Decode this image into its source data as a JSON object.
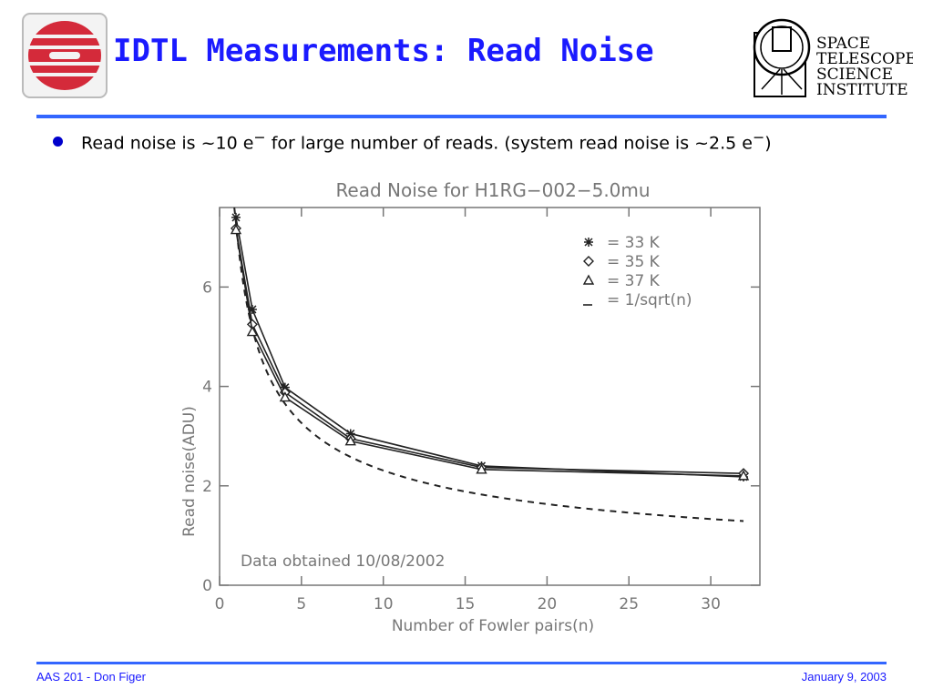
{
  "slide": {
    "title": "IDTL Measurements: Read Noise",
    "bullet_main": "Read noise is ~10 e",
    "bullet_sup1": "−",
    "bullet_mid": " for large number of reads. (system read noise is ~2.5 e",
    "bullet_sup2": "−",
    "bullet_end": ")",
    "footer_left": "AAS 201 - Don Figer",
    "footer_right": "January 9, 2003"
  },
  "logos": {
    "left": {
      "icon": "stsci-red-logo-icon",
      "color": "#d42a3a"
    },
    "right": {
      "icon": "stsci-institute-logo-icon",
      "line1": "SPACE",
      "line2": "TELESCOPE",
      "line3": "SCIENCE",
      "line4": "INSTITUTE"
    }
  },
  "colors": {
    "title": "#1a1aff",
    "rule": "#3366ff",
    "bullet": "#0000cc",
    "chart_text": "#777777",
    "chart_line": "#222222"
  },
  "chart_data": {
    "type": "line",
    "title": "Read Noise for H1RG−002−5.0mu",
    "xlabel": "Number of Fowler pairs(n)",
    "ylabel": "Read noise(ADU)",
    "xlim": [
      0,
      33
    ],
    "ylim": [
      0,
      7.6
    ],
    "xticks": [
      0,
      5,
      10,
      15,
      20,
      25,
      30
    ],
    "yticks": [
      0,
      2,
      4,
      6
    ],
    "annotation": "Data obtained 10/08/2002",
    "legend_position": "top-right",
    "x": [
      1,
      2,
      4,
      8,
      16,
      32
    ],
    "series": [
      {
        "name": "= 33 K",
        "marker": "asterisk",
        "values": [
          7.4,
          5.55,
          3.98,
          3.05,
          2.4,
          2.18
        ]
      },
      {
        "name": "= 35 K",
        "marker": "diamond",
        "values": [
          7.18,
          5.25,
          3.88,
          2.95,
          2.37,
          2.25
        ]
      },
      {
        "name": "= 37 K",
        "marker": "triangle",
        "values": [
          7.15,
          5.1,
          3.78,
          2.9,
          2.33,
          2.2
        ]
      },
      {
        "name": "= 1/sqrt(n)",
        "marker": "none",
        "dashed": true,
        "function": "7.3/sqrt(n)"
      }
    ]
  }
}
